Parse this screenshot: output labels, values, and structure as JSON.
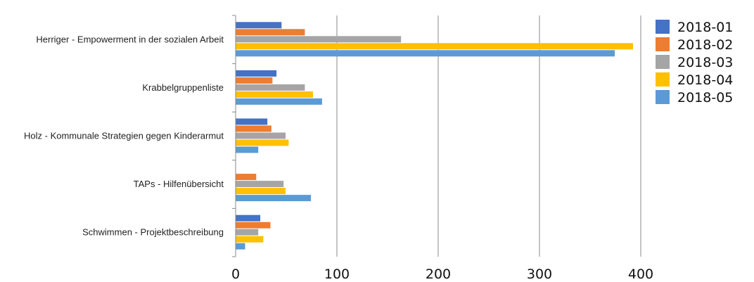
{
  "chart_data": {
    "type": "bar",
    "orientation": "horizontal",
    "categories": [
      "Herriger - Empowerment in der sozialen Arbeit",
      "Krabbelgruppenliste",
      "Holz - Kommunale Strategien gegen Kinderarmut",
      "TAPs - Hilfenübersicht",
      "Schwimmen - Projektbeschreibung"
    ],
    "series": [
      {
        "name": "2018-01",
        "color": "#4472c4",
        "values": [
          45,
          40,
          31,
          0,
          24
        ]
      },
      {
        "name": "2018-02",
        "color": "#ed7d31",
        "values": [
          68,
          36,
          35,
          20,
          34
        ]
      },
      {
        "name": "2018-03",
        "color": "#a5a5a5",
        "values": [
          163,
          68,
          49,
          47,
          22
        ]
      },
      {
        "name": "2018-04",
        "color": "#ffc000",
        "values": [
          392,
          76,
          52,
          49,
          27
        ]
      },
      {
        "name": "2018-05",
        "color": "#5b9bd5",
        "values": [
          374,
          85,
          22,
          74,
          9
        ]
      }
    ],
    "xlim": [
      0,
      400
    ],
    "xticks": [
      0,
      100,
      200,
      300,
      400
    ],
    "grid": true,
    "legend_position": "right"
  }
}
